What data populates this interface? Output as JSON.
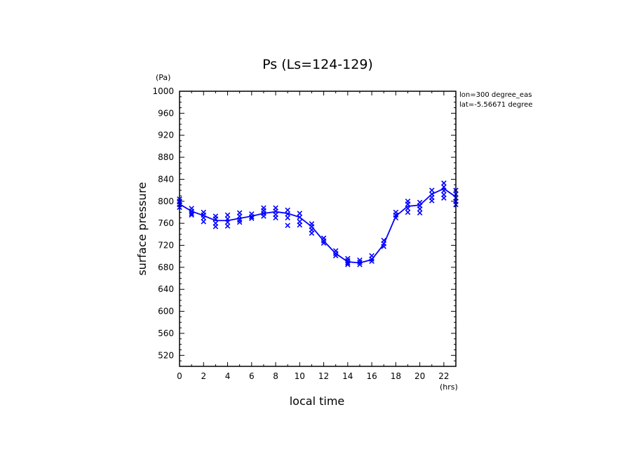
{
  "chart_data": {
    "type": "line",
    "title": "Ps (Ls=124-129)",
    "xlabel": "local time",
    "ylabel": "surface pressure",
    "x_unit": "(hrs)",
    "y_unit": "(Pa)",
    "xlim": [
      0,
      23
    ],
    "ylim": [
      500,
      1000
    ],
    "xticks": [
      "0",
      "2",
      "4",
      "6",
      "8",
      "10",
      "12",
      "14",
      "16",
      "18",
      "20",
      "22"
    ],
    "yticks": [
      "520",
      "560",
      "600",
      "640",
      "680",
      "720",
      "760",
      "800",
      "840",
      "880",
      "920",
      "960",
      "1000"
    ],
    "annotations": [
      "lon=300 degree_eas",
      "lat=-5.56671 degree"
    ],
    "line_color": "#0000ff",
    "series": [
      {
        "kind": "mean-line",
        "x": [
          0,
          1,
          2,
          3,
          4,
          5,
          6,
          7,
          8,
          9,
          10,
          11,
          12,
          13,
          14,
          15,
          16,
          17,
          18,
          19,
          20,
          21,
          22,
          23
        ],
        "y": [
          795,
          782,
          774,
          765,
          765,
          769,
          773,
          778,
          781,
          778,
          771,
          754,
          728,
          705,
          690,
          688,
          694,
          722,
          773,
          791,
          793,
          813,
          823,
          808
        ]
      },
      {
        "kind": "samples",
        "marker": "x",
        "points": [
          [
            0,
            804
          ],
          [
            0,
            799
          ],
          [
            0,
            794
          ],
          [
            0,
            789
          ],
          [
            0,
            800
          ],
          [
            1,
            787
          ],
          [
            1,
            782
          ],
          [
            1,
            778
          ],
          [
            1,
            775
          ],
          [
            2,
            780
          ],
          [
            2,
            775
          ],
          [
            2,
            770
          ],
          [
            2,
            763
          ],
          [
            3,
            773
          ],
          [
            3,
            768
          ],
          [
            3,
            760
          ],
          [
            3,
            754
          ],
          [
            4,
            775
          ],
          [
            4,
            768
          ],
          [
            4,
            762
          ],
          [
            4,
            755
          ],
          [
            5,
            779
          ],
          [
            5,
            773
          ],
          [
            5,
            766
          ],
          [
            5,
            762
          ],
          [
            6,
            777
          ],
          [
            6,
            772
          ],
          [
            6,
            769
          ],
          [
            7,
            788
          ],
          [
            7,
            783
          ],
          [
            7,
            778
          ],
          [
            7,
            773
          ],
          [
            8,
            788
          ],
          [
            8,
            782
          ],
          [
            8,
            776
          ],
          [
            8,
            770
          ],
          [
            9,
            784
          ],
          [
            9,
            777
          ],
          [
            9,
            770
          ],
          [
            9,
            756
          ],
          [
            10,
            778
          ],
          [
            10,
            771
          ],
          [
            10,
            763
          ],
          [
            10,
            757
          ],
          [
            11,
            759
          ],
          [
            11,
            754
          ],
          [
            11,
            748
          ],
          [
            11,
            742
          ],
          [
            12,
            733
          ],
          [
            12,
            728
          ],
          [
            12,
            724
          ],
          [
            13,
            710
          ],
          [
            13,
            705
          ],
          [
            13,
            701
          ],
          [
            14,
            696
          ],
          [
            14,
            692
          ],
          [
            14,
            688
          ],
          [
            14,
            685
          ],
          [
            15,
            693
          ],
          [
            15,
            689
          ],
          [
            15,
            685
          ],
          [
            16,
            701
          ],
          [
            16,
            695
          ],
          [
            16,
            691
          ],
          [
            17,
            729
          ],
          [
            17,
            723
          ],
          [
            17,
            718
          ],
          [
            18,
            780
          ],
          [
            18,
            775
          ],
          [
            18,
            770
          ],
          [
            19,
            800
          ],
          [
            19,
            795
          ],
          [
            19,
            787
          ],
          [
            19,
            780
          ],
          [
            20,
            798
          ],
          [
            20,
            792
          ],
          [
            20,
            786
          ],
          [
            20,
            779
          ],
          [
            21,
            820
          ],
          [
            21,
            813
          ],
          [
            21,
            807
          ],
          [
            21,
            801
          ],
          [
            22,
            833
          ],
          [
            22,
            826
          ],
          [
            22,
            819
          ],
          [
            22,
            812
          ],
          [
            22,
            806
          ],
          [
            23,
            820
          ],
          [
            23,
            813
          ],
          [
            23,
            806
          ],
          [
            23,
            800
          ],
          [
            23,
            794
          ]
        ]
      }
    ]
  }
}
